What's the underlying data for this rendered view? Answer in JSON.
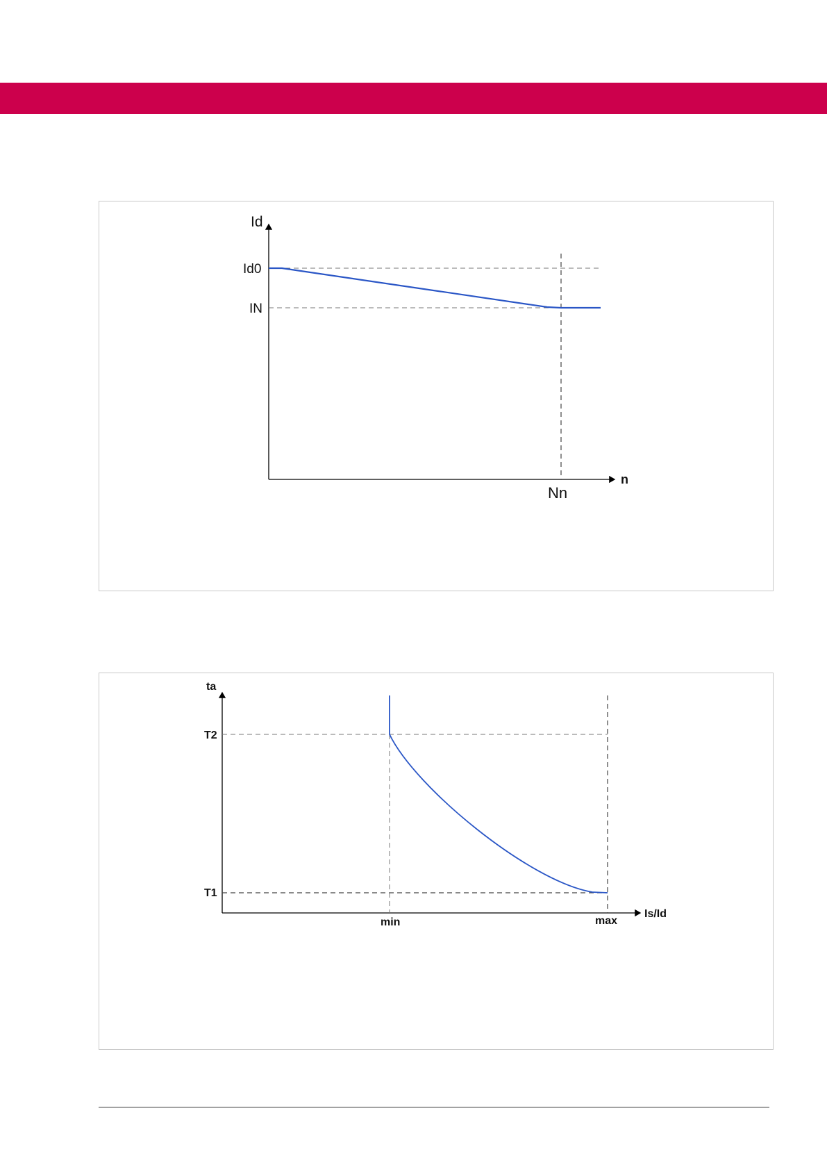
{
  "colors": {
    "header_band": "#cc004c",
    "curve": "#2a56c6",
    "axis": "#000000",
    "guide": "#777777"
  },
  "chart_data": [
    {
      "type": "line",
      "title": "",
      "y_axis_label": "Id",
      "x_axis_label": "n",
      "y_ticks": [
        "Id0",
        "IN"
      ],
      "x_ticks": [
        "Nn"
      ],
      "series": [
        {
          "points": [
            {
              "n": 0,
              "level": "Id0"
            },
            {
              "n": "Nn",
              "level": "IN"
            },
            {
              "n": "beyond Nn",
              "level": "IN"
            }
          ]
        }
      ],
      "grid": false,
      "guides": "dashed lines at Id0, IN and Nn"
    },
    {
      "type": "line",
      "title": "",
      "y_axis_label": "ta",
      "x_axis_label": "Is/Id",
      "y_ticks": [
        "T2",
        "T1"
      ],
      "x_ticks": [
        "min",
        "max"
      ],
      "series": [
        {
          "points": [
            {
              "x": "min",
              "y": "above T2"
            },
            {
              "x": "min",
              "y": "T2"
            },
            {
              "x": "max",
              "y": "T1"
            }
          ],
          "shape": "vertical segment at min, then concave decreasing curve from T2 at min to T1 at max"
        }
      ],
      "grid": false,
      "guides": "dashed lines at T2, T1, min and max"
    }
  ]
}
